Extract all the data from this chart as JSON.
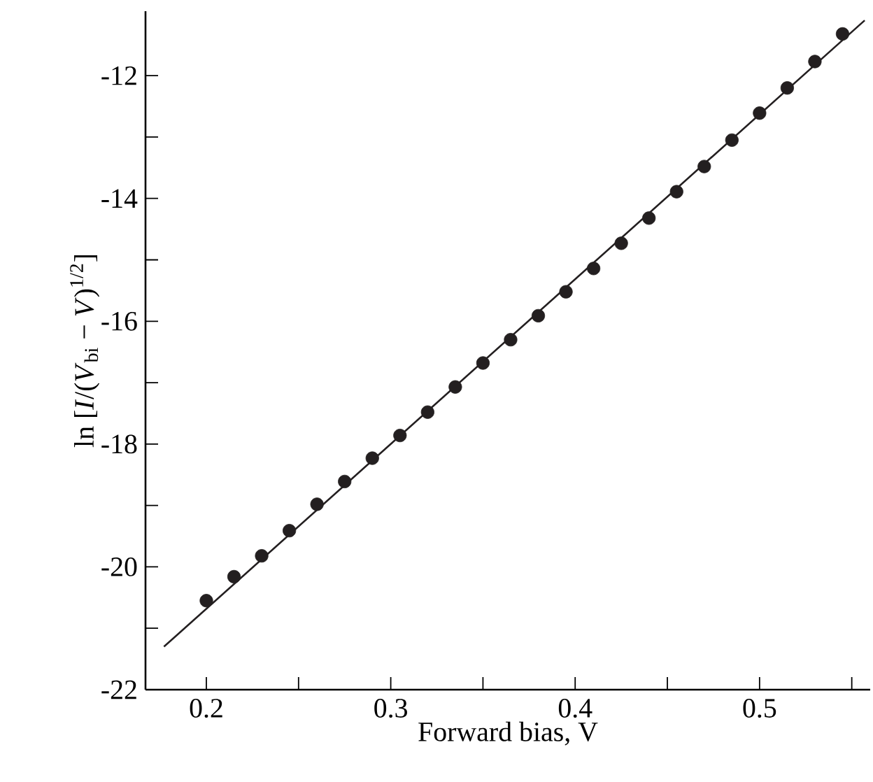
{
  "chart_data": {
    "type": "scatter",
    "xlabel": "Forward bias, V",
    "ylabel": "ln [*I*/(*V*$_{bi}$ − *V*)$^{1/2}$]",
    "xlim": [
      0.167,
      0.56
    ],
    "ylim": [
      -22,
      -10.95
    ],
    "xticks": [
      0.2,
      {
        "value": 0.25,
        "label": null
      },
      0.3,
      {
        "value": 0.35,
        "label": null
      },
      0.4,
      {
        "value": 0.45,
        "label": null
      },
      0.5,
      {
        "value": 0.55,
        "label": null
      }
    ],
    "yticks": [
      -22,
      {
        "value": -21,
        "label": null
      },
      -20,
      {
        "value": -19,
        "label": null
      },
      -18,
      {
        "value": -17,
        "label": null
      },
      -16,
      {
        "value": -15,
        "label": null
      },
      -14,
      {
        "value": -13,
        "label": null
      },
      -12
    ],
    "series": [
      {
        "marker": "circle",
        "color": "#231f20",
        "x": [
          0.2,
          0.215,
          0.23,
          0.245,
          0.26,
          0.275,
          0.29,
          0.305,
          0.32,
          0.335,
          0.35,
          0.365,
          0.38,
          0.395,
          0.41,
          0.425,
          0.44,
          0.455,
          0.47,
          0.485,
          0.5,
          0.515,
          0.53,
          0.545
        ],
        "values": [
          -20.55,
          -20.16,
          -19.82,
          -19.41,
          -18.98,
          -18.61,
          -18.23,
          -17.86,
          -17.48,
          -17.07,
          -16.68,
          -16.3,
          -15.91,
          -15.52,
          -15.14,
          -14.73,
          -14.32,
          -13.89,
          -13.48,
          -13.05,
          -12.61,
          -12.2,
          -11.77,
          -11.32
        ]
      },
      {
        "type": "line",
        "marker": "none",
        "line_style": "solid",
        "color": "#231f20",
        "x": [
          0.177,
          0.557
        ],
        "values": [
          -21.3,
          -11.1
        ]
      }
    ]
  }
}
